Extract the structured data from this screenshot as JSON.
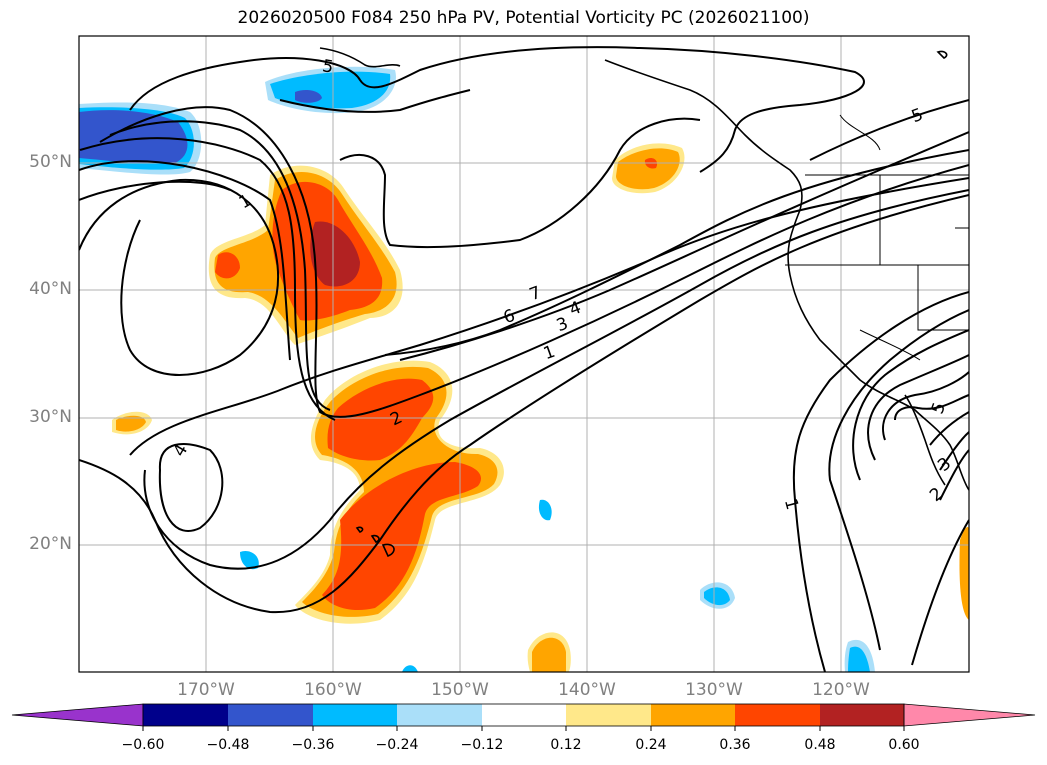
{
  "title": "2026020500 F084 250 hPa PV, Potential Vorticity PC (2026021100)",
  "map": {
    "lat_labels": [
      "50°N",
      "40°N",
      "30°N",
      "20°N"
    ],
    "lon_labels": [
      "170°W",
      "160°W",
      "150°W",
      "140°W",
      "130°W",
      "120°W"
    ],
    "contour_labels": [
      "5",
      "1",
      "7",
      "6",
      "3",
      "4",
      "1",
      "2",
      "4",
      "5",
      "1",
      "5",
      "3",
      "2"
    ]
  },
  "colorbar": {
    "ticks": [
      "−0.60",
      "−0.48",
      "−0.36",
      "−0.24",
      "−0.12",
      "0.12",
      "0.24",
      "0.36",
      "0.48",
      "0.60"
    ],
    "colors": [
      "#9933cc",
      "#00008b",
      "#3355cc",
      "#00bbff",
      "#aadff9",
      "#ffffff",
      "#ffe88a",
      "#ffa500",
      "#ff4500",
      "#b22222",
      "#ff88aa"
    ]
  }
}
